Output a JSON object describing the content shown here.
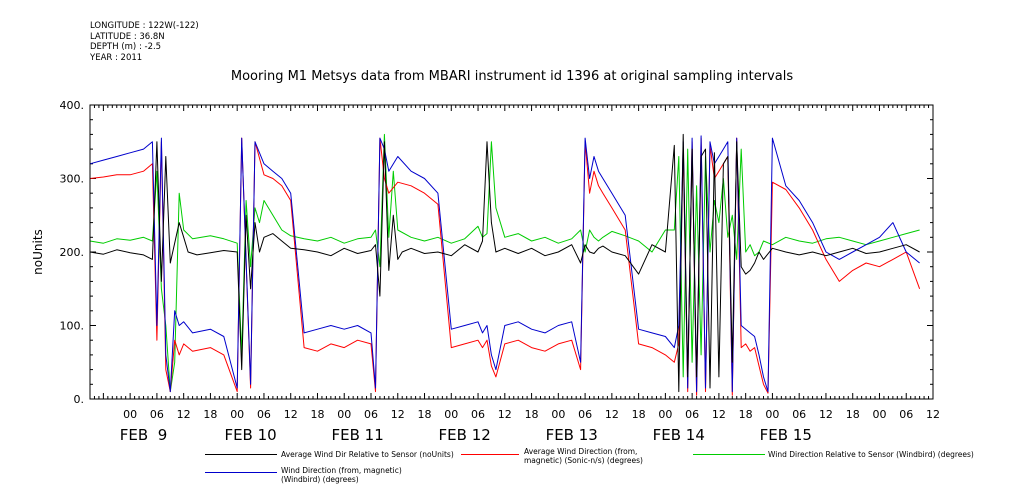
{
  "header": {
    "longitude": "LONGITUDE : 122W(-122)",
    "latitude": "LATITUDE : 36.8N",
    "depth": "DEPTH (m) : -2.5",
    "year": "YEAR : 2011"
  },
  "chart_data": {
    "type": "line",
    "title": "Mooring M1 Metsys data from MBARI instrument id 1396 at original sampling intervals",
    "ylabel": "noUnits",
    "xlabel": "",
    "ylim": [
      0,
      400
    ],
    "yticks": [
      "0.",
      "100.",
      "200.",
      "300.",
      "400."
    ],
    "xlim_hours": [
      -9,
      180
    ],
    "hour_tick_labels": [
      "00",
      "06",
      "12",
      "18"
    ],
    "day_labels": [
      "FEB  9",
      "FEB 10",
      "FEB 11",
      "FEB 12",
      "FEB 13",
      "FEB 14",
      "FEB 15"
    ],
    "grid": false,
    "legend_position": "bottom",
    "series": [
      {
        "name": "Average Wind Dir Relative to Sensor (noUnits)",
        "color": "#000000",
        "x": [
          -9,
          -6,
          -3,
          0,
          3,
          5,
          6,
          7,
          8,
          9,
          11,
          12,
          13,
          15,
          18,
          21,
          24,
          25,
          26,
          27,
          28,
          29,
          30,
          32,
          34,
          36,
          39,
          42,
          45,
          48,
          51,
          54,
          55,
          56,
          57,
          58,
          59,
          60,
          61,
          63,
          66,
          69,
          72,
          75,
          78,
          79,
          80,
          81,
          82,
          84,
          87,
          90,
          93,
          96,
          99,
          101,
          102,
          103,
          104,
          105,
          106,
          108,
          111,
          114,
          117,
          120,
          122,
          123,
          124,
          125,
          126,
          127,
          128,
          129,
          130,
          131,
          132,
          133,
          134,
          135,
          136,
          137,
          138,
          139,
          140,
          141,
          142,
          144,
          147,
          150,
          153,
          156,
          159,
          162,
          165,
          168,
          171,
          174,
          177
        ],
        "y": [
          200,
          197,
          203,
          199,
          196,
          190,
          350,
          160,
          330,
          185,
          240,
          220,
          200,
          196,
          199,
          202,
          200,
          40,
          250,
          150,
          240,
          200,
          220,
          225,
          215,
          205,
          203,
          200,
          195,
          205,
          198,
          202,
          210,
          140,
          350,
          175,
          250,
          190,
          200,
          205,
          198,
          200,
          195,
          210,
          200,
          215,
          350,
          240,
          200,
          205,
          198,
          205,
          195,
          200,
          210,
          185,
          210,
          200,
          198,
          205,
          208,
          200,
          195,
          170,
          210,
          200,
          345,
          10,
          360,
          30,
          340,
          30,
          330,
          340,
          15,
          335,
          30,
          320,
          330,
          50,
          350,
          180,
          170,
          175,
          185,
          200,
          190,
          205,
          200,
          196,
          200,
          195,
          200,
          205,
          198,
          200,
          205,
          210,
          200
        ]
      },
      {
        "name": "Average Wind Direction (from, magnetic) (Sonic-n/s) (degrees)",
        "color": "#ff0000",
        "x": [
          -9,
          -6,
          -3,
          0,
          3,
          5,
          6,
          7,
          8,
          9,
          10,
          11,
          12,
          14,
          18,
          21,
          24,
          25,
          27,
          28,
          30,
          32,
          34,
          36,
          39,
          42,
          45,
          48,
          51,
          54,
          55,
          56,
          57,
          58,
          60,
          63,
          66,
          69,
          72,
          75,
          78,
          79,
          80,
          81,
          82,
          84,
          87,
          90,
          93,
          96,
          99,
          101,
          102,
          103,
          104,
          105,
          106,
          108,
          111,
          114,
          117,
          120,
          122,
          123,
          124,
          125,
          126,
          127,
          128,
          129,
          130,
          131,
          132,
          133,
          134,
          135,
          136,
          137,
          138,
          139,
          140,
          141,
          142,
          143,
          144,
          147,
          150,
          153,
          156,
          159,
          162,
          165,
          168,
          171,
          174,
          177
        ],
        "y": [
          300,
          302,
          305,
          305,
          310,
          320,
          80,
          350,
          40,
          10,
          80,
          60,
          75,
          65,
          70,
          60,
          10,
          355,
          15,
          350,
          305,
          300,
          290,
          270,
          70,
          65,
          75,
          70,
          80,
          75,
          10,
          355,
          300,
          280,
          295,
          290,
          280,
          265,
          70,
          75,
          80,
          70,
          80,
          45,
          30,
          75,
          80,
          70,
          65,
          75,
          80,
          40,
          350,
          280,
          310,
          290,
          280,
          260,
          230,
          75,
          70,
          60,
          50,
          75,
          340,
          10,
          350,
          5,
          355,
          10,
          345,
          300,
          310,
          320,
          330,
          5,
          355,
          70,
          75,
          65,
          70,
          45,
          20,
          8,
          295,
          285,
          260,
          230,
          190,
          160,
          175,
          185,
          180,
          190,
          200,
          150
        ]
      },
      {
        "name": "Wind Direction Relative to Sensor (Windbird) (degrees)",
        "color": "#00cc00",
        "x": [
          -9,
          -6,
          -3,
          0,
          3,
          5,
          6,
          7,
          8,
          9,
          10,
          11,
          12,
          14,
          18,
          21,
          24,
          25,
          26,
          27,
          28,
          29,
          30,
          32,
          34,
          36,
          39,
          42,
          45,
          48,
          51,
          54,
          55,
          56,
          57,
          58,
          59,
          60,
          63,
          66,
          69,
          72,
          75,
          78,
          79,
          80,
          81,
          82,
          84,
          87,
          90,
          93,
          96,
          99,
          101,
          102,
          103,
          104,
          105,
          106,
          108,
          111,
          114,
          117,
          120,
          122,
          123,
          124,
          125,
          126,
          127,
          128,
          129,
          130,
          131,
          132,
          133,
          134,
          135,
          136,
          137,
          138,
          139,
          140,
          141,
          142,
          144,
          147,
          150,
          153,
          156,
          159,
          162,
          165,
          168,
          171,
          174,
          177
        ],
        "y": [
          215,
          212,
          218,
          216,
          220,
          215,
          310,
          150,
          100,
          10,
          50,
          280,
          230,
          218,
          222,
          218,
          212,
          60,
          270,
          180,
          260,
          240,
          270,
          250,
          230,
          222,
          218,
          215,
          220,
          212,
          218,
          220,
          230,
          180,
          360,
          220,
          310,
          230,
          220,
          215,
          220,
          212,
          218,
          235,
          220,
          225,
          350,
          260,
          220,
          225,
          215,
          220,
          212,
          218,
          230,
          200,
          230,
          220,
          215,
          220,
          228,
          222,
          215,
          200,
          230,
          230,
          330,
          30,
          340,
          50,
          290,
          60,
          330,
          200,
          270,
          240,
          300,
          220,
          250,
          190,
          340,
          200,
          210,
          195,
          200,
          215,
          210,
          220,
          215,
          212,
          218,
          220,
          215,
          210,
          215,
          220,
          225,
          230
        ]
      },
      {
        "name": "Wind Direction (from, magnetic) (Windbird) (degrees)",
        "color": "#0000cc",
        "x": [
          -9,
          -6,
          -3,
          0,
          3,
          5,
          6,
          7,
          8,
          9,
          10,
          11,
          12,
          14,
          18,
          21,
          24,
          25,
          27,
          28,
          30,
          32,
          34,
          36,
          39,
          42,
          45,
          48,
          51,
          54,
          55,
          56,
          57,
          58,
          60,
          63,
          66,
          69,
          72,
          75,
          78,
          79,
          80,
          81,
          82,
          84,
          87,
          90,
          93,
          96,
          99,
          101,
          102,
          103,
          104,
          105,
          106,
          108,
          111,
          114,
          117,
          120,
          122,
          123,
          124,
          125,
          126,
          127,
          128,
          129,
          130,
          131,
          132,
          133,
          134,
          135,
          136,
          137,
          138,
          139,
          140,
          141,
          142,
          143,
          144,
          147,
          150,
          153,
          156,
          159,
          162,
          165,
          168,
          171,
          174,
          177
        ],
        "y": [
          320,
          325,
          330,
          335,
          340,
          350,
          100,
          355,
          60,
          10,
          120,
          100,
          105,
          90,
          95,
          85,
          15,
          355,
          20,
          350,
          320,
          310,
          300,
          280,
          90,
          95,
          100,
          95,
          100,
          90,
          15,
          355,
          340,
          310,
          330,
          310,
          300,
          280,
          95,
          100,
          105,
          90,
          100,
          60,
          40,
          100,
          105,
          95,
          90,
          100,
          105,
          50,
          355,
          300,
          330,
          310,
          300,
          280,
          250,
          95,
          90,
          85,
          70,
          100,
          350,
          15,
          355,
          10,
          358,
          15,
          350,
          320,
          330,
          340,
          350,
          10,
          355,
          100,
          95,
          90,
          85,
          60,
          30,
          10,
          355,
          290,
          270,
          240,
          200,
          190,
          200,
          210,
          220,
          240,
          200,
          185
        ]
      }
    ]
  }
}
